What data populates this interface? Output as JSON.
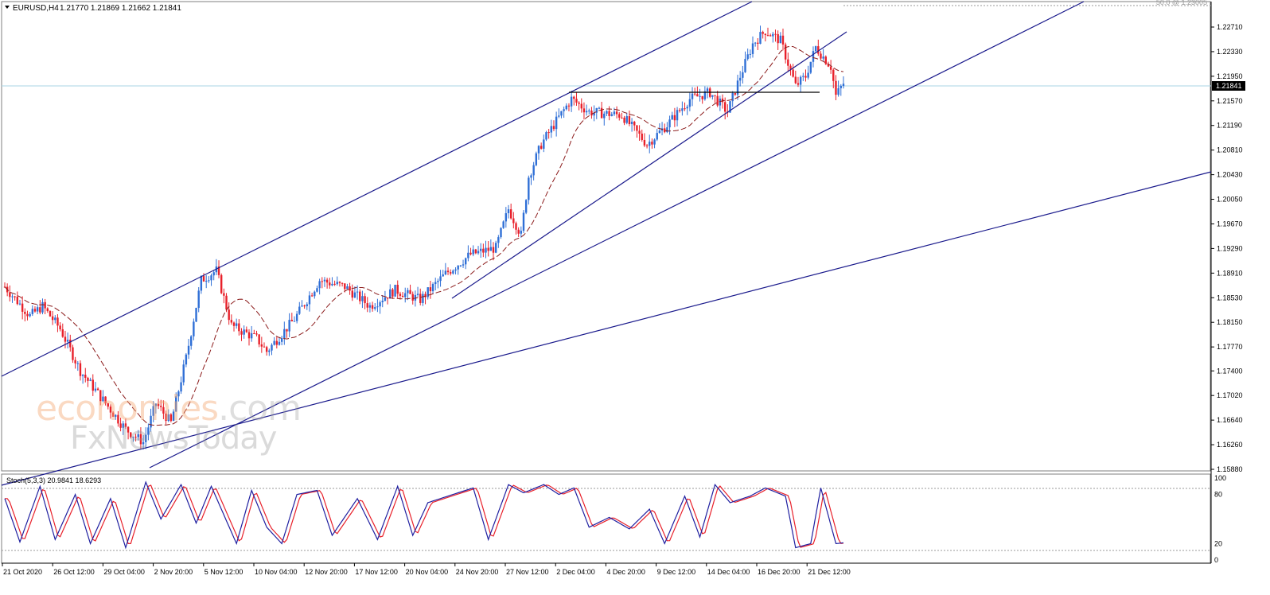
{
  "header": {
    "symbol": "EURUSD,H4",
    "ohlc": "1.21770 1.21869 1.21662 1.21841",
    "fib_label": "50.0 @ 1.23005"
  },
  "current_price": "1.21841",
  "price_axis": [
    "1.22710",
    "1.22330",
    "1.21950",
    "1.21570",
    "1.21190",
    "1.20810",
    "1.20430",
    "1.20050",
    "1.19670",
    "1.19290",
    "1.18910",
    "1.18530",
    "1.18150",
    "1.17770",
    "1.17400",
    "1.17020",
    "1.16640",
    "1.16260",
    "1.15880"
  ],
  "stoch": {
    "label": "Stoch(5,3,3) 20.9841 18.6293",
    "levels": [
      "100",
      "80",
      "20",
      "0"
    ]
  },
  "time_axis": [
    "21 Oct 2020",
    "26 Oct 12:00",
    "29 Oct 04:00",
    "2 Nov 20:00",
    "5 Nov 12:00",
    "10 Nov 04:00",
    "12 Nov 20:00",
    "17 Nov 12:00",
    "20 Nov 04:00",
    "24 Nov 20:00",
    "27 Nov 12:00",
    "2 Dec 04:00",
    "4 Dec 20:00",
    "9 Dec 12:00",
    "14 Dec 04:00",
    "16 Dec 20:00",
    "21 Dec 12:00"
  ],
  "watermark": {
    "brand": "economies",
    "tld": ".com",
    "sub": "FxNewsToday"
  },
  "colors": {
    "bull": "#2f6fd6",
    "bear": "#e8202a",
    "trendline": "#1a1a8c",
    "ma": "#8b1a1a",
    "stoch_main": "#1f1fa0",
    "stoch_signal": "#e8202a",
    "price_line": "#a8d4e6"
  },
  "chart_data": {
    "type": "candlestick",
    "timeframe": "H4",
    "ylim": [
      1.1588,
      1.2309
    ],
    "price_anchors": [
      [
        0,
        1.187
      ],
      [
        10,
        1.1825
      ],
      [
        15,
        1.184
      ],
      [
        22,
        1.1805
      ],
      [
        30,
        1.174
      ],
      [
        40,
        1.169
      ],
      [
        48,
        1.165
      ],
      [
        55,
        1.163
      ],
      [
        60,
        1.169
      ],
      [
        66,
        1.166
      ],
      [
        72,
        1.176
      ],
      [
        78,
        1.188
      ],
      [
        84,
        1.1895
      ],
      [
        90,
        1.181
      ],
      [
        100,
        1.179
      ],
      [
        104,
        1.177
      ],
      [
        115,
        1.182
      ],
      [
        125,
        1.188
      ],
      [
        135,
        1.187
      ],
      [
        145,
        1.184
      ],
      [
        155,
        1.1865
      ],
      [
        165,
        1.185
      ],
      [
        175,
        1.189
      ],
      [
        185,
        1.192
      ],
      [
        195,
        1.193
      ],
      [
        200,
        1.199
      ],
      [
        205,
        1.195
      ],
      [
        208,
        1.204
      ],
      [
        213,
        1.209
      ],
      [
        218,
        1.212
      ],
      [
        225,
        1.216
      ],
      [
        232,
        1.214
      ],
      [
        245,
        1.2135
      ],
      [
        255,
        1.209
      ],
      [
        263,
        1.212
      ],
      [
        272,
        1.216
      ],
      [
        280,
        1.217
      ],
      [
        287,
        1.214
      ],
      [
        292,
        1.2195
      ],
      [
        297,
        1.2245
      ],
      [
        302,
        1.2265
      ],
      [
        308,
        1.225
      ],
      [
        314,
        1.218
      ],
      [
        318,
        1.2195
      ],
      [
        322,
        1.224
      ],
      [
        328,
        1.221
      ],
      [
        330,
        1.2165
      ],
      [
        333,
        1.2184
      ]
    ],
    "stoch_main_anchors": [
      [
        0,
        75
      ],
      [
        6,
        22
      ],
      [
        14,
        90
      ],
      [
        20,
        25
      ],
      [
        28,
        80
      ],
      [
        34,
        20
      ],
      [
        42,
        75
      ],
      [
        48,
        15
      ],
      [
        56,
        95
      ],
      [
        62,
        50
      ],
      [
        70,
        92
      ],
      [
        76,
        45
      ],
      [
        82,
        90
      ],
      [
        92,
        20
      ],
      [
        98,
        85
      ],
      [
        104,
        40
      ],
      [
        110,
        20
      ],
      [
        116,
        80
      ],
      [
        124,
        85
      ],
      [
        130,
        30
      ],
      [
        140,
        75
      ],
      [
        148,
        25
      ],
      [
        156,
        90
      ],
      [
        162,
        30
      ],
      [
        168,
        70
      ],
      [
        176,
        78
      ],
      [
        186,
        88
      ],
      [
        192,
        25
      ],
      [
        200,
        92
      ],
      [
        206,
        82
      ],
      [
        214,
        92
      ],
      [
        220,
        80
      ],
      [
        226,
        88
      ],
      [
        232,
        40
      ],
      [
        240,
        52
      ],
      [
        248,
        38
      ],
      [
        256,
        62
      ],
      [
        262,
        20
      ],
      [
        270,
        78
      ],
      [
        276,
        28
      ],
      [
        282,
        92
      ],
      [
        288,
        70
      ],
      [
        296,
        78
      ],
      [
        302,
        88
      ],
      [
        310,
        78
      ],
      [
        314,
        15
      ],
      [
        320,
        20
      ],
      [
        324,
        88
      ],
      [
        330,
        20
      ],
      [
        333,
        21
      ]
    ],
    "stoch_signal_offset": 1.5
  }
}
